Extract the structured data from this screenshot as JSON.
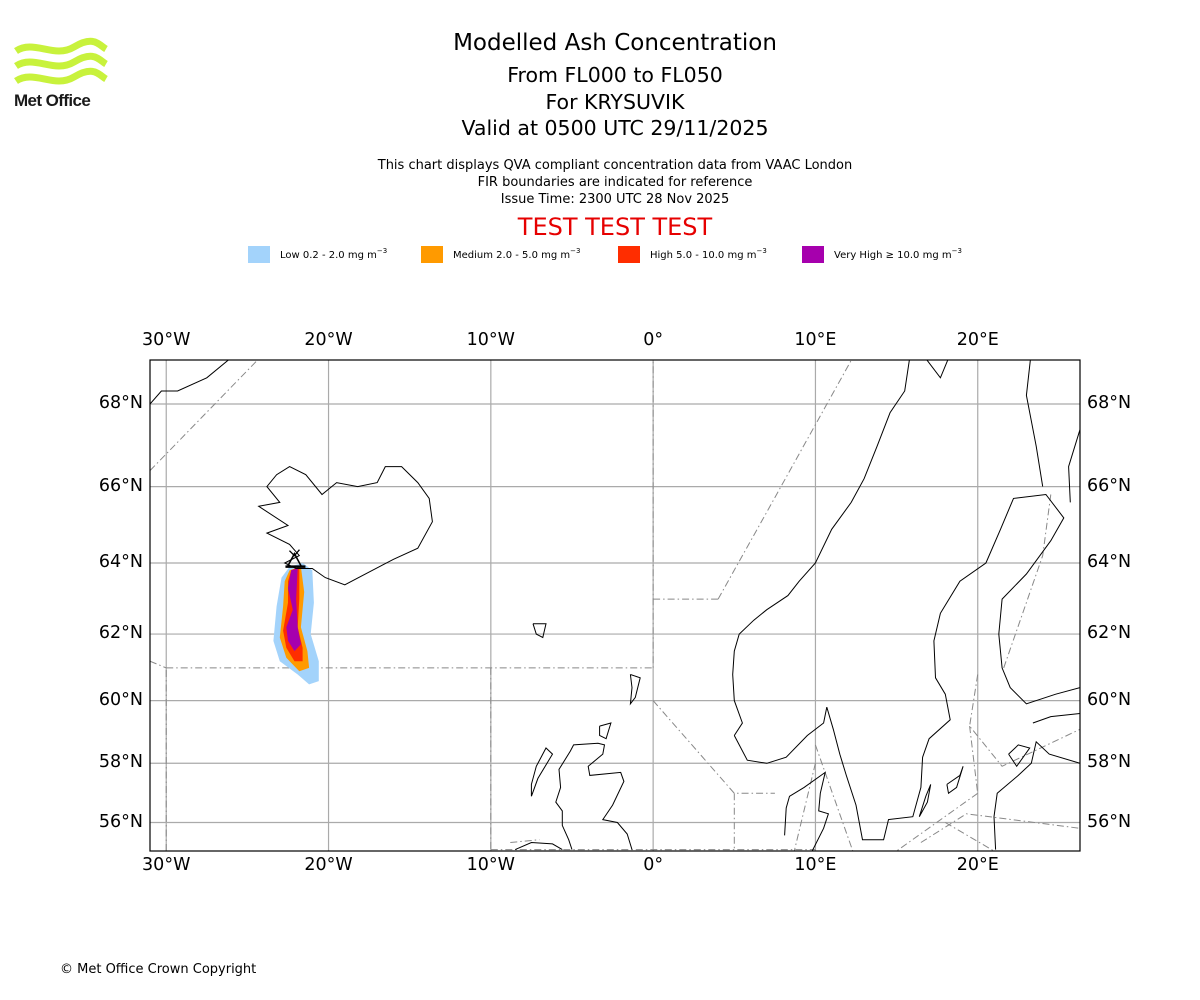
{
  "logo": {
    "brand": "Met Office",
    "color": "#c8f23c"
  },
  "header": {
    "title": "Modelled Ash Concentration",
    "level_range": "From FL000 to FL050",
    "volcano": "For KRYSUVIK",
    "valid_time": "Valid at 0500 UTC 29/11/2025"
  },
  "notes": {
    "line1": "This chart displays QVA compliant concentration data from VAAC London",
    "line2": "FIR boundaries are indicated for reference",
    "issue_time": "Issue Time: 2300 UTC 28 Nov 2025"
  },
  "test_banner": "TEST TEST TEST",
  "legend": [
    {
      "label": "Low 0.2 - 2.0 mg m",
      "unit_exp": "−3",
      "color": "#a3d3fb"
    },
    {
      "label": "Medium 2.0 - 5.0 mg m",
      "unit_exp": "−3",
      "color": "#ff9a00"
    },
    {
      "label": "High 5.0 - 10.0 mg m",
      "unit_exp": "−3",
      "color": "#ff2d00"
    },
    {
      "label": "Very High  ≥  10.0 mg m",
      "unit_exp": "−3",
      "color": "#a600ad"
    }
  ],
  "map": {
    "lon_range": [
      -31,
      26.3
    ],
    "lat_range": [
      55.0,
      69.0
    ],
    "lon_ticks": [
      {
        "value": -30,
        "label": "30°W"
      },
      {
        "value": -20,
        "label": "20°W"
      },
      {
        "value": -10,
        "label": "10°W"
      },
      {
        "value": 0,
        "label": "0°"
      },
      {
        "value": 10,
        "label": "10°E"
      },
      {
        "value": 20,
        "label": "20°E"
      }
    ],
    "lat_ticks": [
      {
        "value": 68,
        "label": "68°N"
      },
      {
        "value": 66,
        "label": "66°N"
      },
      {
        "value": 64,
        "label": "64°N"
      },
      {
        "value": 62,
        "label": "62°N"
      },
      {
        "value": 60,
        "label": "60°N"
      },
      {
        "value": 58,
        "label": "58°N"
      },
      {
        "value": 56,
        "label": "56°N"
      }
    ],
    "volcano_marker": {
      "name": "KRYSUVIK",
      "lon": -22.1,
      "lat": 63.9,
      "icon": "volcano-triangle-icon"
    },
    "grid_color": "#aaaaaa",
    "fir_color": "#888888"
  },
  "footer": {
    "copyright": "© Met Office Crown Copyright"
  }
}
